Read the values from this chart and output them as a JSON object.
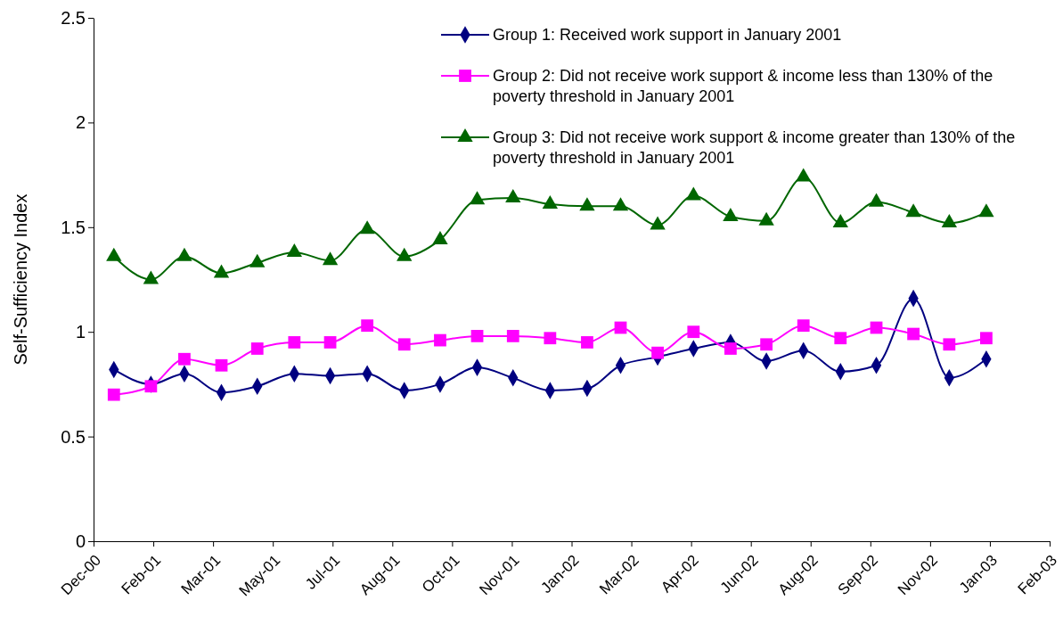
{
  "chart_data": {
    "type": "line",
    "ylabel": "Self-Sufficiency Index",
    "x": [
      "2001-01-01",
      "2001-02-01",
      "2001-03-01",
      "2001-04-01",
      "2001-05-01",
      "2001-06-01",
      "2001-07-01",
      "2001-08-01",
      "2001-09-01",
      "2001-10-01",
      "2001-11-01",
      "2001-12-01",
      "2002-01-01",
      "2002-02-01",
      "2002-03-01",
      "2002-04-01",
      "2002-05-01",
      "2002-06-01",
      "2002-07-01",
      "2002-08-01",
      "2002-09-01",
      "2002-10-01",
      "2002-11-01",
      "2002-12-01",
      "2003-01-01"
    ],
    "series": [
      {
        "name": "Group 1: Received work support in January 2001",
        "color": "#000080",
        "marker": "diamond",
        "values": [
          0.82,
          0.75,
          0.8,
          0.71,
          0.74,
          0.8,
          0.79,
          0.8,
          0.72,
          0.75,
          0.83,
          0.78,
          0.72,
          0.73,
          0.84,
          0.88,
          0.92,
          0.95,
          0.86,
          0.91,
          0.81,
          0.84,
          1.16,
          0.78,
          0.87
        ]
      },
      {
        "name": "Group 2: Did not receive work support & income less than 130% of the poverty threshold in January 2001",
        "color": "#ff00ff",
        "marker": "square",
        "values": [
          0.7,
          0.74,
          0.87,
          0.84,
          0.92,
          0.95,
          0.95,
          1.03,
          0.94,
          0.96,
          0.98,
          0.98,
          0.97,
          0.95,
          1.02,
          0.9,
          1.0,
          0.92,
          0.94,
          1.03,
          0.97,
          1.02,
          0.99,
          0.94,
          0.97
        ]
      },
      {
        "name": "Group 3: Did not receive work support & income greater than 130% of the poverty threshold in January 2001",
        "color": "#006600",
        "marker": "triangle",
        "values": [
          1.36,
          1.25,
          1.36,
          1.28,
          1.33,
          1.38,
          1.34,
          1.49,
          1.36,
          1.44,
          1.63,
          1.64,
          1.61,
          1.6,
          1.6,
          1.51,
          1.65,
          1.55,
          1.53,
          1.74,
          1.52,
          1.62,
          1.57,
          1.52,
          1.57
        ]
      }
    ],
    "xlim": [
      "2000-12-15",
      "2003-02-23"
    ],
    "xticks": [
      {
        "value": "2000-12-15",
        "label": "Dec-00"
      },
      {
        "value": "2001-02-03",
        "label": "Feb-01"
      },
      {
        "value": "2001-03-25",
        "label": "Mar-01"
      },
      {
        "value": "2001-05-14",
        "label": "May-01"
      },
      {
        "value": "2001-07-03",
        "label": "Jul-01"
      },
      {
        "value": "2001-08-22",
        "label": "Aug-01"
      },
      {
        "value": "2001-10-11",
        "label": "Oct-01"
      },
      {
        "value": "2001-11-30",
        "label": "Nov-01"
      },
      {
        "value": "2002-01-19",
        "label": "Jan-02"
      },
      {
        "value": "2002-03-10",
        "label": "Mar-02"
      },
      {
        "value": "2002-04-29",
        "label": "Apr-02"
      },
      {
        "value": "2002-06-18",
        "label": "Jun-02"
      },
      {
        "value": "2002-08-07",
        "label": "Aug-02"
      },
      {
        "value": "2002-09-26",
        "label": "Sep-02"
      },
      {
        "value": "2002-11-15",
        "label": "Nov-02"
      },
      {
        "value": "2003-01-04",
        "label": "Jan-03"
      },
      {
        "value": "2003-02-23",
        "label": "Feb-03"
      }
    ],
    "ylim": [
      0,
      2.5
    ],
    "yticks": [
      0,
      0.5,
      1,
      1.5,
      2,
      2.5
    ],
    "grid": false,
    "legend": "top right"
  }
}
